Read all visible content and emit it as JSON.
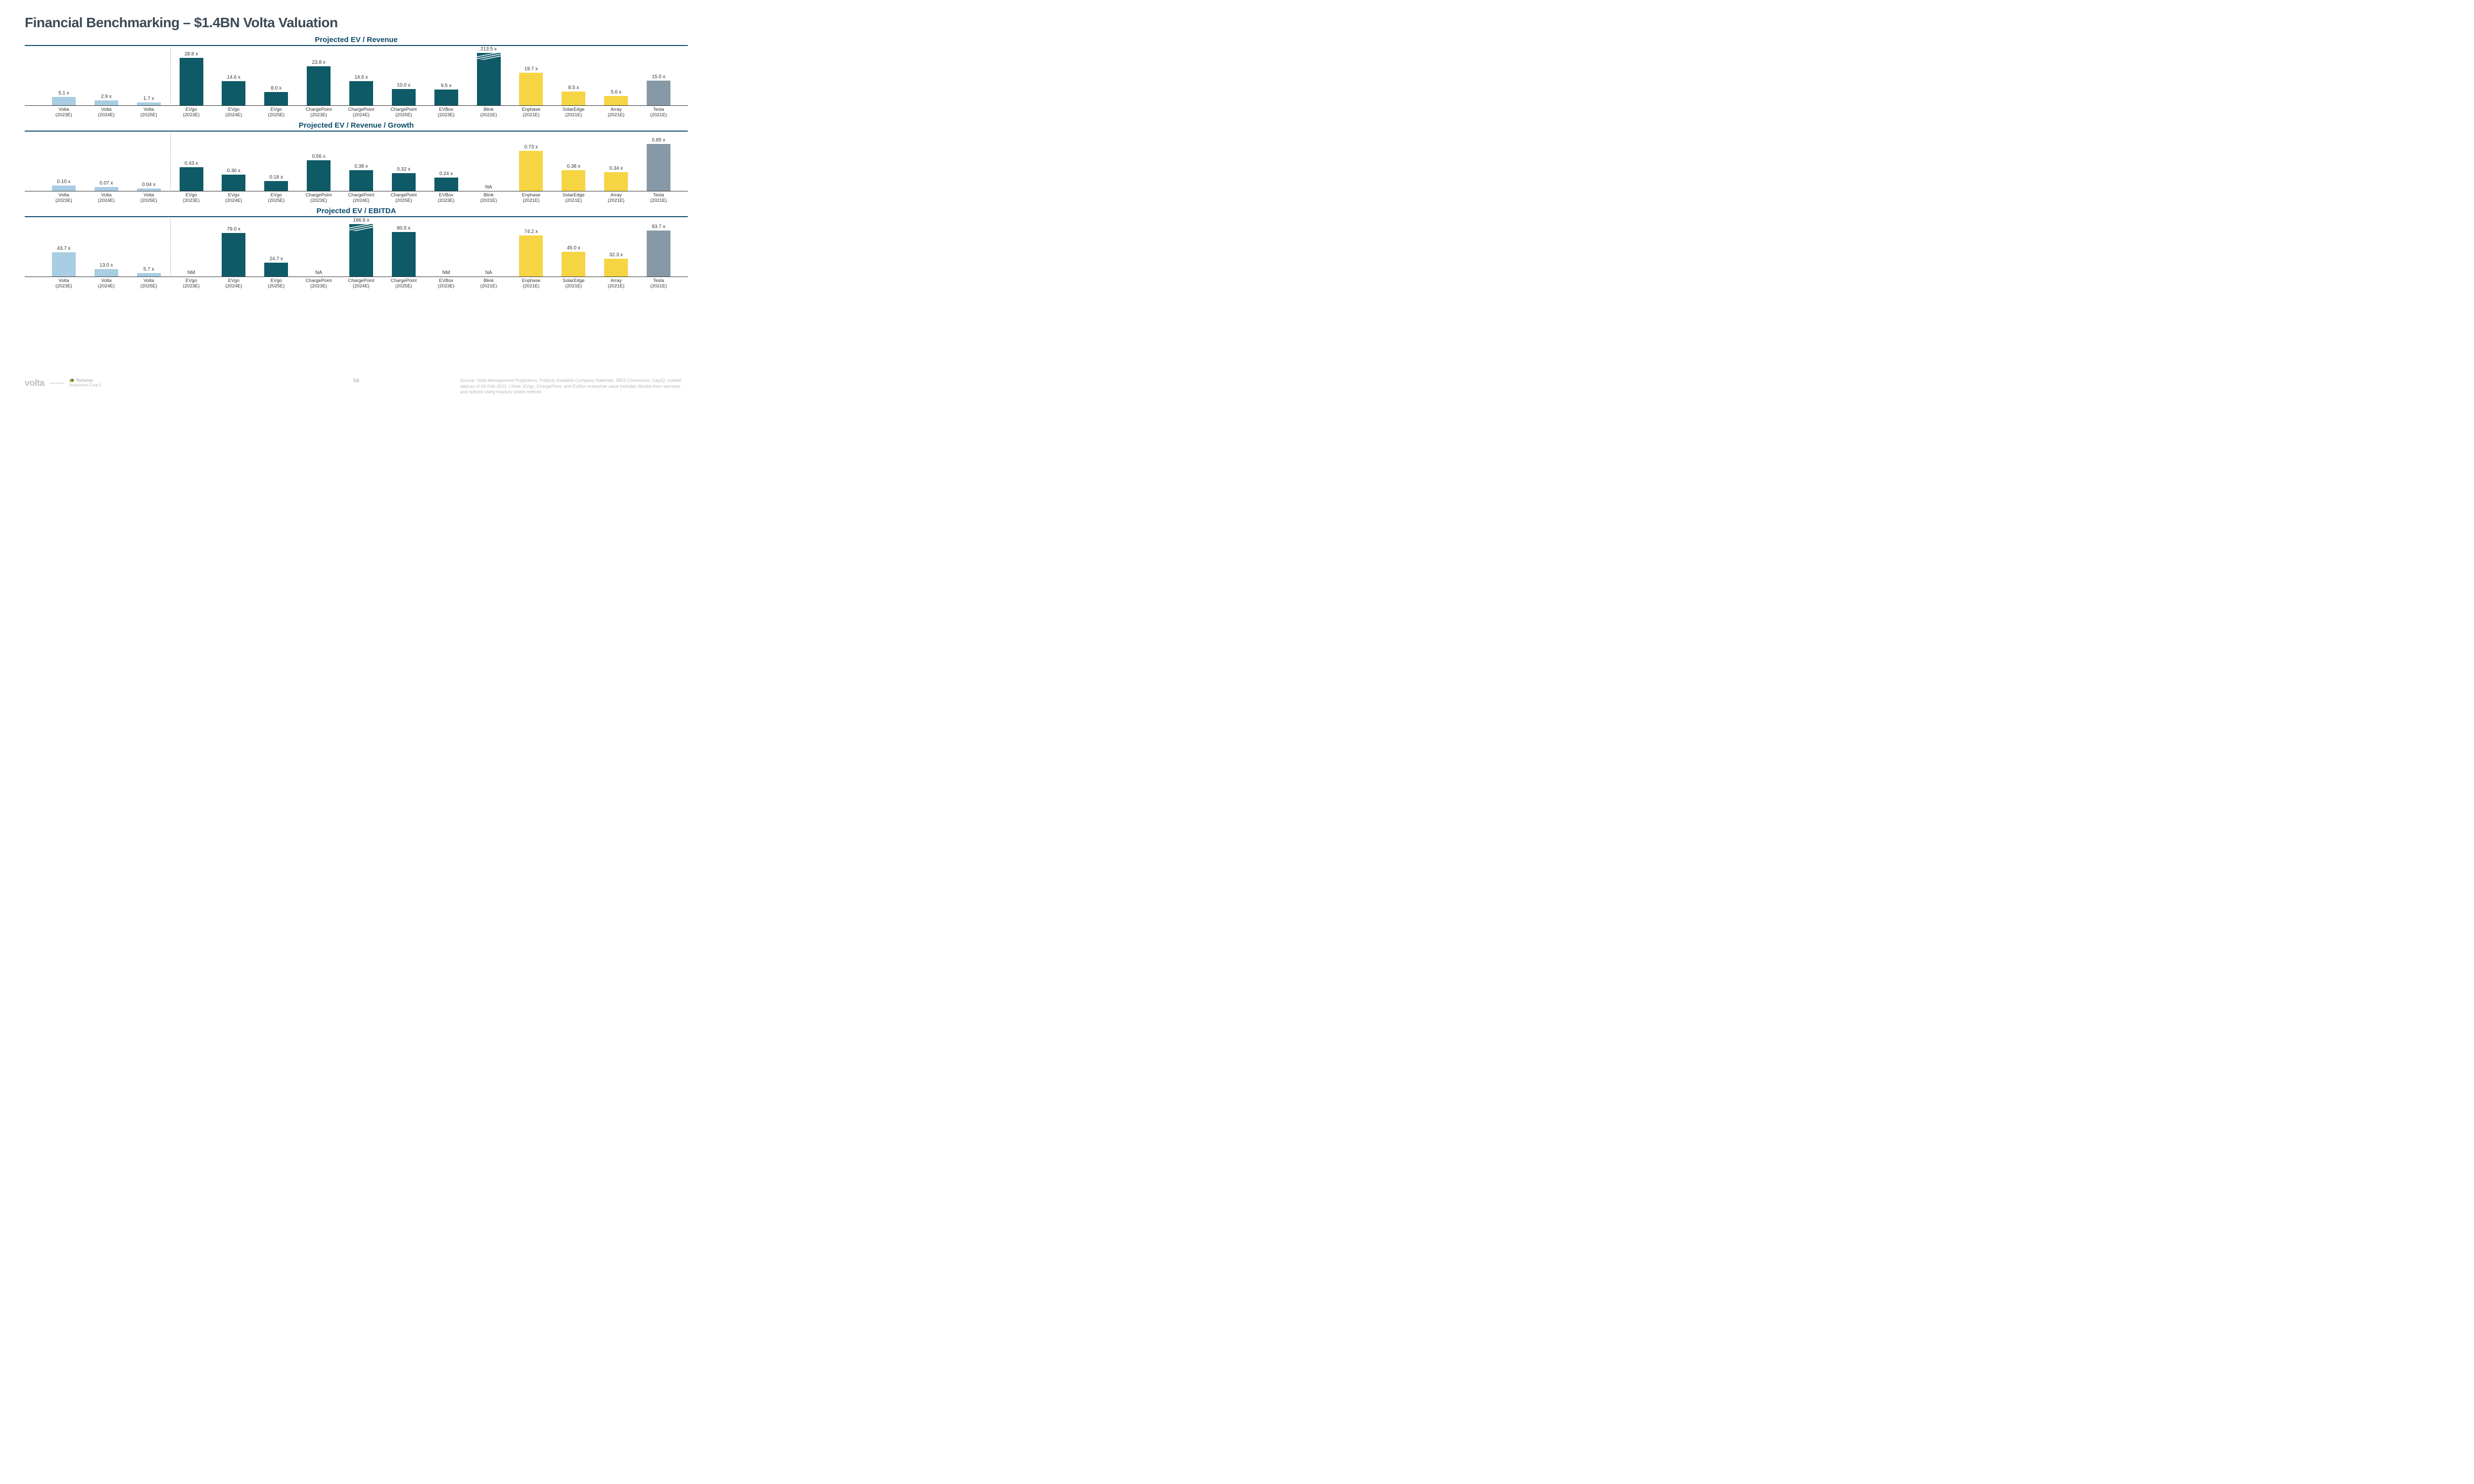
{
  "title": "Financial Benchmarking – $1.4BN Volta Valuation",
  "colors": {
    "light_blue": "#a9cde2",
    "teal": "#0e5a67",
    "yellow": "#f5d543",
    "gray": "#8799a6",
    "divider": "#aaaaaa",
    "title": "#0a4a6a"
  },
  "categories": [
    {
      "line1": "Volta",
      "line2": "(2023E)"
    },
    {
      "line1": "Volta",
      "line2": "(2024E)"
    },
    {
      "line1": "Volta",
      "line2": "(2025E)"
    },
    {
      "line1": "EVgo",
      "line2": "(2023E)"
    },
    {
      "line1": "EVgo",
      "line2": "(2024E)"
    },
    {
      "line1": "EVgo",
      "line2": "(2025E)"
    },
    {
      "line1": "ChargePoint",
      "line2": "(2023E)"
    },
    {
      "line1": "ChargePoint",
      "line2": "(2024E)"
    },
    {
      "line1": "ChargePoint",
      "line2": "(2025E)"
    },
    {
      "line1": "EVBox",
      "line2": "(2023E)"
    },
    {
      "line1": "Blink",
      "line2": "(2021E)"
    },
    {
      "line1": "Enphase",
      "line2": "(2021E)"
    },
    {
      "line1": "SolarEdge",
      "line2": "(2021E)"
    },
    {
      "line1": "Array",
      "line2": "(2021E)"
    },
    {
      "line1": "Tesla",
      "line2": "(2021E)"
    }
  ],
  "bar_colors_by_index": [
    "light_blue",
    "light_blue",
    "light_blue",
    "teal",
    "teal",
    "teal",
    "teal",
    "teal",
    "teal",
    "teal",
    "teal",
    "yellow",
    "yellow",
    "yellow",
    "gray"
  ],
  "divider_after_index": 3,
  "charts": [
    {
      "title": "Projected EV / Revenue",
      "ymax": 30,
      "bars": [
        {
          "v": 5.1,
          "label": "5.1 x"
        },
        {
          "v": 2.9,
          "label": "2.9 x"
        },
        {
          "v": 1.7,
          "label": "1.7 x"
        },
        {
          "v": 28.8,
          "label": "28.8 x"
        },
        {
          "v": 14.6,
          "label": "14.6 x"
        },
        {
          "v": 8.0,
          "label": "8.0 x"
        },
        {
          "v": 23.8,
          "label": "23.8 x"
        },
        {
          "v": 14.6,
          "label": "14.6 x"
        },
        {
          "v": 10.0,
          "label": "10.0 x"
        },
        {
          "v": 9.5,
          "label": "9.5 x"
        },
        {
          "v": 213.5,
          "label": "213.5 x",
          "overflow": true
        },
        {
          "v": 19.7,
          "label": "19.7 x"
        },
        {
          "v": 8.5,
          "label": "8.5 x"
        },
        {
          "v": 5.6,
          "label": "5.6 x"
        },
        {
          "v": 15.0,
          "label": "15.0 x"
        }
      ]
    },
    {
      "title": "Projected EV / Revenue / Growth",
      "ymax": 0.9,
      "bars": [
        {
          "v": 0.1,
          "label": "0.10 x"
        },
        {
          "v": 0.07,
          "label": "0.07 x"
        },
        {
          "v": 0.04,
          "label": "0.04 x"
        },
        {
          "v": 0.43,
          "label": "0.43 x"
        },
        {
          "v": 0.3,
          "label": "0.30 x"
        },
        {
          "v": 0.18,
          "label": "0.18 x"
        },
        {
          "v": 0.56,
          "label": "0.56 x"
        },
        {
          "v": 0.38,
          "label": "0.38 x"
        },
        {
          "v": 0.32,
          "label": "0.32 x"
        },
        {
          "v": 0.24,
          "label": "0.24 x"
        },
        {
          "v": null,
          "label": "NA"
        },
        {
          "v": 0.73,
          "label": "0.73 x"
        },
        {
          "v": 0.38,
          "label": "0.38 x"
        },
        {
          "v": 0.34,
          "label": "0.34 x"
        },
        {
          "v": 0.85,
          "label": "0.85 x"
        }
      ]
    },
    {
      "title": "Projected EV / EBITDA",
      "ymax": 90,
      "bars": [
        {
          "v": 43.7,
          "label": "43.7 x"
        },
        {
          "v": 13.0,
          "label": "13.0 x"
        },
        {
          "v": 5.7,
          "label": "5.7 x"
        },
        {
          "v": null,
          "label": "NM"
        },
        {
          "v": 79.0,
          "label": "79.0 x"
        },
        {
          "v": 24.7,
          "label": "24.7 x"
        },
        {
          "v": null,
          "label": "NA"
        },
        {
          "v": 166.6,
          "label": "166.6 x",
          "overflow": true
        },
        {
          "v": 80.5,
          "label": "80.5 x"
        },
        {
          "v": null,
          "label": "NM"
        },
        {
          "v": null,
          "label": "NA"
        },
        {
          "v": 74.2,
          "label": "74.2 x"
        },
        {
          "v": 45.0,
          "label": "45.0 x"
        },
        {
          "v": 32.3,
          "label": "32.3 x"
        },
        {
          "v": 83.7,
          "label": "83.7 x"
        }
      ]
    }
  ],
  "footer": {
    "logo": "volta",
    "tortoise_line1": "🐢 Tortoise",
    "tortoise_line2": "Acquisition Corp.II",
    "page_number": "56",
    "source": "Source: Volta Management Projections, Publicly Available Company Materials, IBES Consensus, CapIQ; market data as of 04-Feb-2021. | Note: EVgo, ChargePoint, and EVBox enterprise value includes dilution from warrants and options using treasury share method."
  }
}
